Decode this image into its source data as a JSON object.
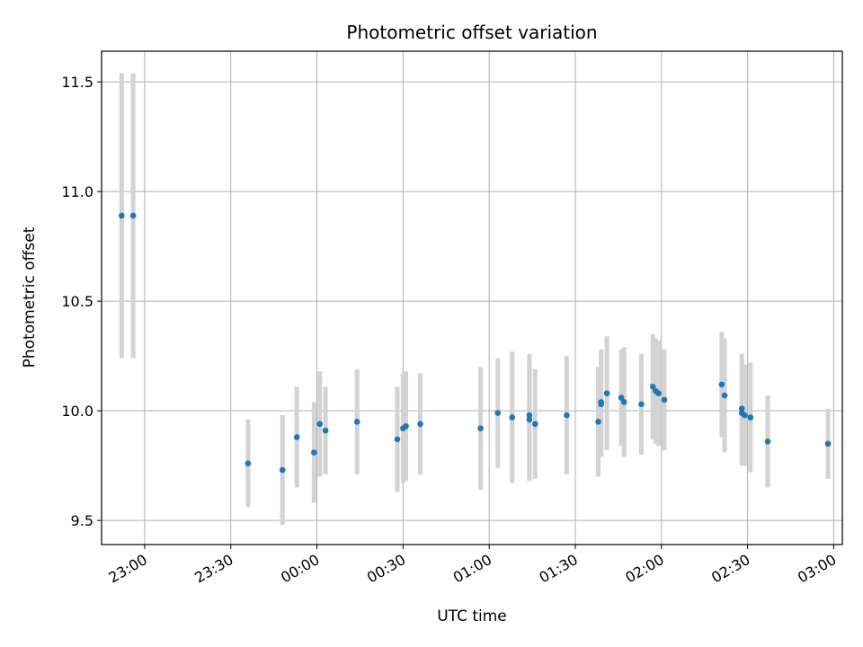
{
  "chart_data": {
    "type": "scatter",
    "title": "Photometric offset variation",
    "xlabel": "UTC time",
    "ylabel": "Photometric offset",
    "grid": true,
    "legend": "none",
    "colors": {
      "point": "#1f77b4",
      "errorbar": "#d3d3d3",
      "grid": "#b0b0b0"
    },
    "xlim": [
      "22:45",
      "03:03"
    ],
    "ylim": [
      9.39,
      11.64
    ],
    "x_ticks": [
      "23:00",
      "23:30",
      "00:00",
      "00:30",
      "01:00",
      "01:30",
      "02:00",
      "02:30",
      "03:00"
    ],
    "y_ticks": [
      "9.5",
      "10.0",
      "10.5",
      "11.0",
      "11.5"
    ],
    "points": [
      {
        "x": "22:52",
        "y": 10.89,
        "err": 0.65
      },
      {
        "x": "22:56",
        "y": 10.89,
        "err": 0.65
      },
      {
        "x": "23:36",
        "y": 9.76,
        "err": 0.2
      },
      {
        "x": "23:48",
        "y": 9.73,
        "err": 0.25
      },
      {
        "x": "23:53",
        "y": 9.88,
        "err": 0.23
      },
      {
        "x": "23:59",
        "y": 9.81,
        "err": 0.23
      },
      {
        "x": "00:01",
        "y": 9.94,
        "err": 0.24
      },
      {
        "x": "00:03",
        "y": 9.91,
        "err": 0.2
      },
      {
        "x": "00:14",
        "y": 9.95,
        "err": 0.24
      },
      {
        "x": "00:28",
        "y": 9.87,
        "err": 0.24
      },
      {
        "x": "00:30",
        "y": 9.92,
        "err": 0.25
      },
      {
        "x": "00:31",
        "y": 9.93,
        "err": 0.25
      },
      {
        "x": "00:36",
        "y": 9.94,
        "err": 0.23
      },
      {
        "x": "00:57",
        "y": 9.92,
        "err": 0.28
      },
      {
        "x": "01:03",
        "y": 9.99,
        "err": 0.25
      },
      {
        "x": "01:08",
        "y": 9.97,
        "err": 0.3
      },
      {
        "x": "01:14",
        "y": 9.96,
        "err": 0.28
      },
      {
        "x": "01:14",
        "y": 9.98,
        "err": 0.28
      },
      {
        "x": "01:16",
        "y": 9.94,
        "err": 0.25
      },
      {
        "x": "01:27",
        "y": 9.98,
        "err": 0.27
      },
      {
        "x": "01:38",
        "y": 9.95,
        "err": 0.25
      },
      {
        "x": "01:39",
        "y": 10.04,
        "err": 0.24
      },
      {
        "x": "01:39",
        "y": 10.03,
        "err": 0.24
      },
      {
        "x": "01:41",
        "y": 10.08,
        "err": 0.26
      },
      {
        "x": "01:46",
        "y": 10.06,
        "err": 0.22
      },
      {
        "x": "01:47",
        "y": 10.04,
        "err": 0.25
      },
      {
        "x": "01:53",
        "y": 10.03,
        "err": 0.23
      },
      {
        "x": "01:57",
        "y": 10.11,
        "err": 0.24
      },
      {
        "x": "01:58",
        "y": 10.09,
        "err": 0.24
      },
      {
        "x": "01:59",
        "y": 10.08,
        "err": 0.24
      },
      {
        "x": "02:01",
        "y": 10.05,
        "err": 0.23
      },
      {
        "x": "02:21",
        "y": 10.12,
        "err": 0.24
      },
      {
        "x": "02:22",
        "y": 10.07,
        "err": 0.26
      },
      {
        "x": "02:28",
        "y": 9.99,
        "err": 0.24
      },
      {
        "x": "02:28",
        "y": 10.01,
        "err": 0.25
      },
      {
        "x": "02:29",
        "y": 9.98,
        "err": 0.23
      },
      {
        "x": "02:31",
        "y": 9.97,
        "err": 0.25
      },
      {
        "x": "02:37",
        "y": 9.86,
        "err": 0.21
      },
      {
        "x": "02:58",
        "y": 9.85,
        "err": 0.16
      }
    ]
  }
}
